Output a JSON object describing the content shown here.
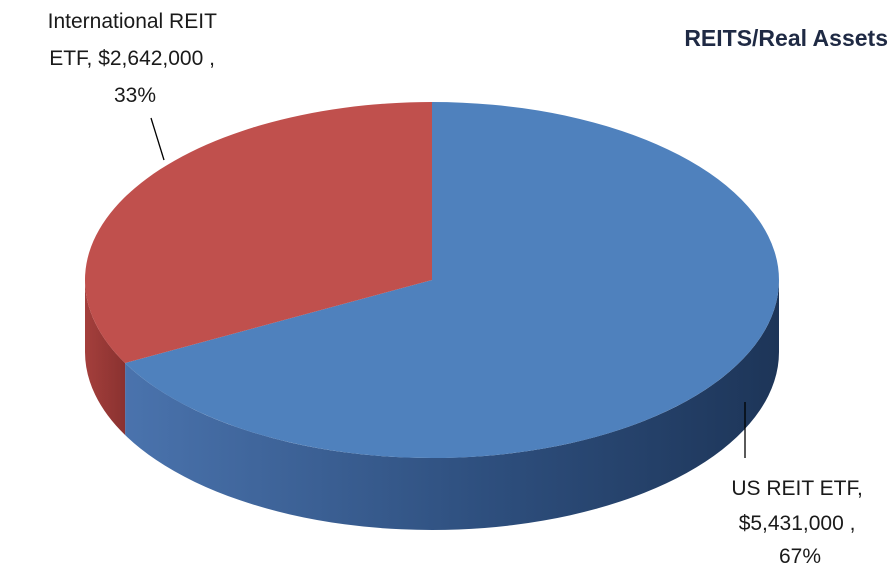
{
  "chart_data": {
    "type": "pie",
    "title": "REITS/Real Assets",
    "three_d": true,
    "start_angle_deg": 0,
    "direction": "clockwise",
    "slices": [
      {
        "label": "US REIT ETF",
        "value": 5431000,
        "value_text": "$5,431,000",
        "percent": 67,
        "percent_text": "67%",
        "color": "#4F81BD"
      },
      {
        "label": "International REIT ETF",
        "value": 2642000,
        "value_text": "$2,642,000",
        "percent": 33,
        "percent_text": "33%",
        "color": "#C0504D"
      }
    ],
    "data_labels": [
      {
        "lines": [
          "International REIT",
          "ETF,  $2,642,000 ,",
          "33%"
        ]
      },
      {
        "lines": [
          "US REIT ETF,",
          "$5,431,000 ,",
          "67%"
        ]
      }
    ],
    "legend": "none"
  }
}
